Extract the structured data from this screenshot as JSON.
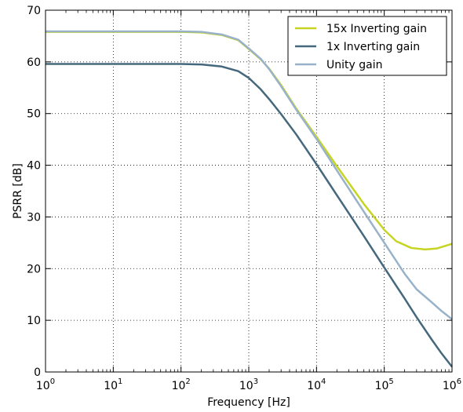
{
  "chart_data": {
    "type": "line",
    "xlabel": "Frequency [Hz]",
    "ylabel": "PSRR [dB]",
    "xscale": "log",
    "xlim": [
      1,
      1000000
    ],
    "ylim": [
      0,
      70
    ],
    "grid": true,
    "legend_position": "top-right",
    "x_ticks": [
      {
        "value": 1,
        "base": "10",
        "exp": "0"
      },
      {
        "value": 10,
        "base": "10",
        "exp": "1"
      },
      {
        "value": 100,
        "base": "10",
        "exp": "2"
      },
      {
        "value": 1000,
        "base": "10",
        "exp": "3"
      },
      {
        "value": 10000,
        "base": "10",
        "exp": "4"
      },
      {
        "value": 100000,
        "base": "10",
        "exp": "5"
      },
      {
        "value": 1000000,
        "base": "10",
        "exp": "6"
      }
    ],
    "y_ticks": [
      0,
      10,
      20,
      30,
      40,
      50,
      60,
      70
    ],
    "series": [
      {
        "name": "15x Inverting gain",
        "color": "#c6d423",
        "points": [
          [
            1,
            65.8
          ],
          [
            10,
            65.8
          ],
          [
            100,
            65.8
          ],
          [
            200,
            65.7
          ],
          [
            400,
            65.2
          ],
          [
            700,
            64.2
          ],
          [
            1000,
            62.5
          ],
          [
            1500,
            60.5
          ],
          [
            2000,
            58.7
          ],
          [
            3000,
            55.5
          ],
          [
            5000,
            51.0
          ],
          [
            10000,
            45.5
          ],
          [
            20000,
            39.8
          ],
          [
            50000,
            32.5
          ],
          [
            100000,
            27.5
          ],
          [
            150000,
            25.3
          ],
          [
            250000,
            24.0
          ],
          [
            400000,
            23.7
          ],
          [
            600000,
            23.9
          ],
          [
            1000000,
            24.8
          ]
        ]
      },
      {
        "name": "1x Inverting gain",
        "color": "#45687c",
        "points": [
          [
            1,
            59.6
          ],
          [
            10,
            59.6
          ],
          [
            100,
            59.6
          ],
          [
            200,
            59.5
          ],
          [
            400,
            59.1
          ],
          [
            700,
            58.2
          ],
          [
            1000,
            56.9
          ],
          [
            1500,
            54.7
          ],
          [
            2000,
            52.8
          ],
          [
            3000,
            49.9
          ],
          [
            5000,
            46.0
          ],
          [
            10000,
            40.2
          ],
          [
            20000,
            34.2
          ],
          [
            50000,
            26.3
          ],
          [
            100000,
            20.2
          ],
          [
            200000,
            14.2
          ],
          [
            300000,
            10.6
          ],
          [
            500000,
            6.3
          ],
          [
            700000,
            3.6
          ],
          [
            1000000,
            1.0
          ]
        ]
      },
      {
        "name": "Unity gain",
        "color": "#98b2c9",
        "points": [
          [
            1,
            65.9
          ],
          [
            10,
            65.9
          ],
          [
            100,
            65.9
          ],
          [
            200,
            65.8
          ],
          [
            400,
            65.3
          ],
          [
            700,
            64.3
          ],
          [
            1000,
            62.6
          ],
          [
            1500,
            60.6
          ],
          [
            2000,
            58.6
          ],
          [
            3000,
            55.3
          ],
          [
            5000,
            50.8
          ],
          [
            10000,
            45.1
          ],
          [
            20000,
            39.0
          ],
          [
            50000,
            31.0
          ],
          [
            100000,
            25.0
          ],
          [
            200000,
            19.0
          ],
          [
            300000,
            16.0
          ],
          [
            500000,
            13.5
          ],
          [
            700000,
            11.8
          ],
          [
            1000000,
            10.2
          ]
        ]
      }
    ]
  }
}
